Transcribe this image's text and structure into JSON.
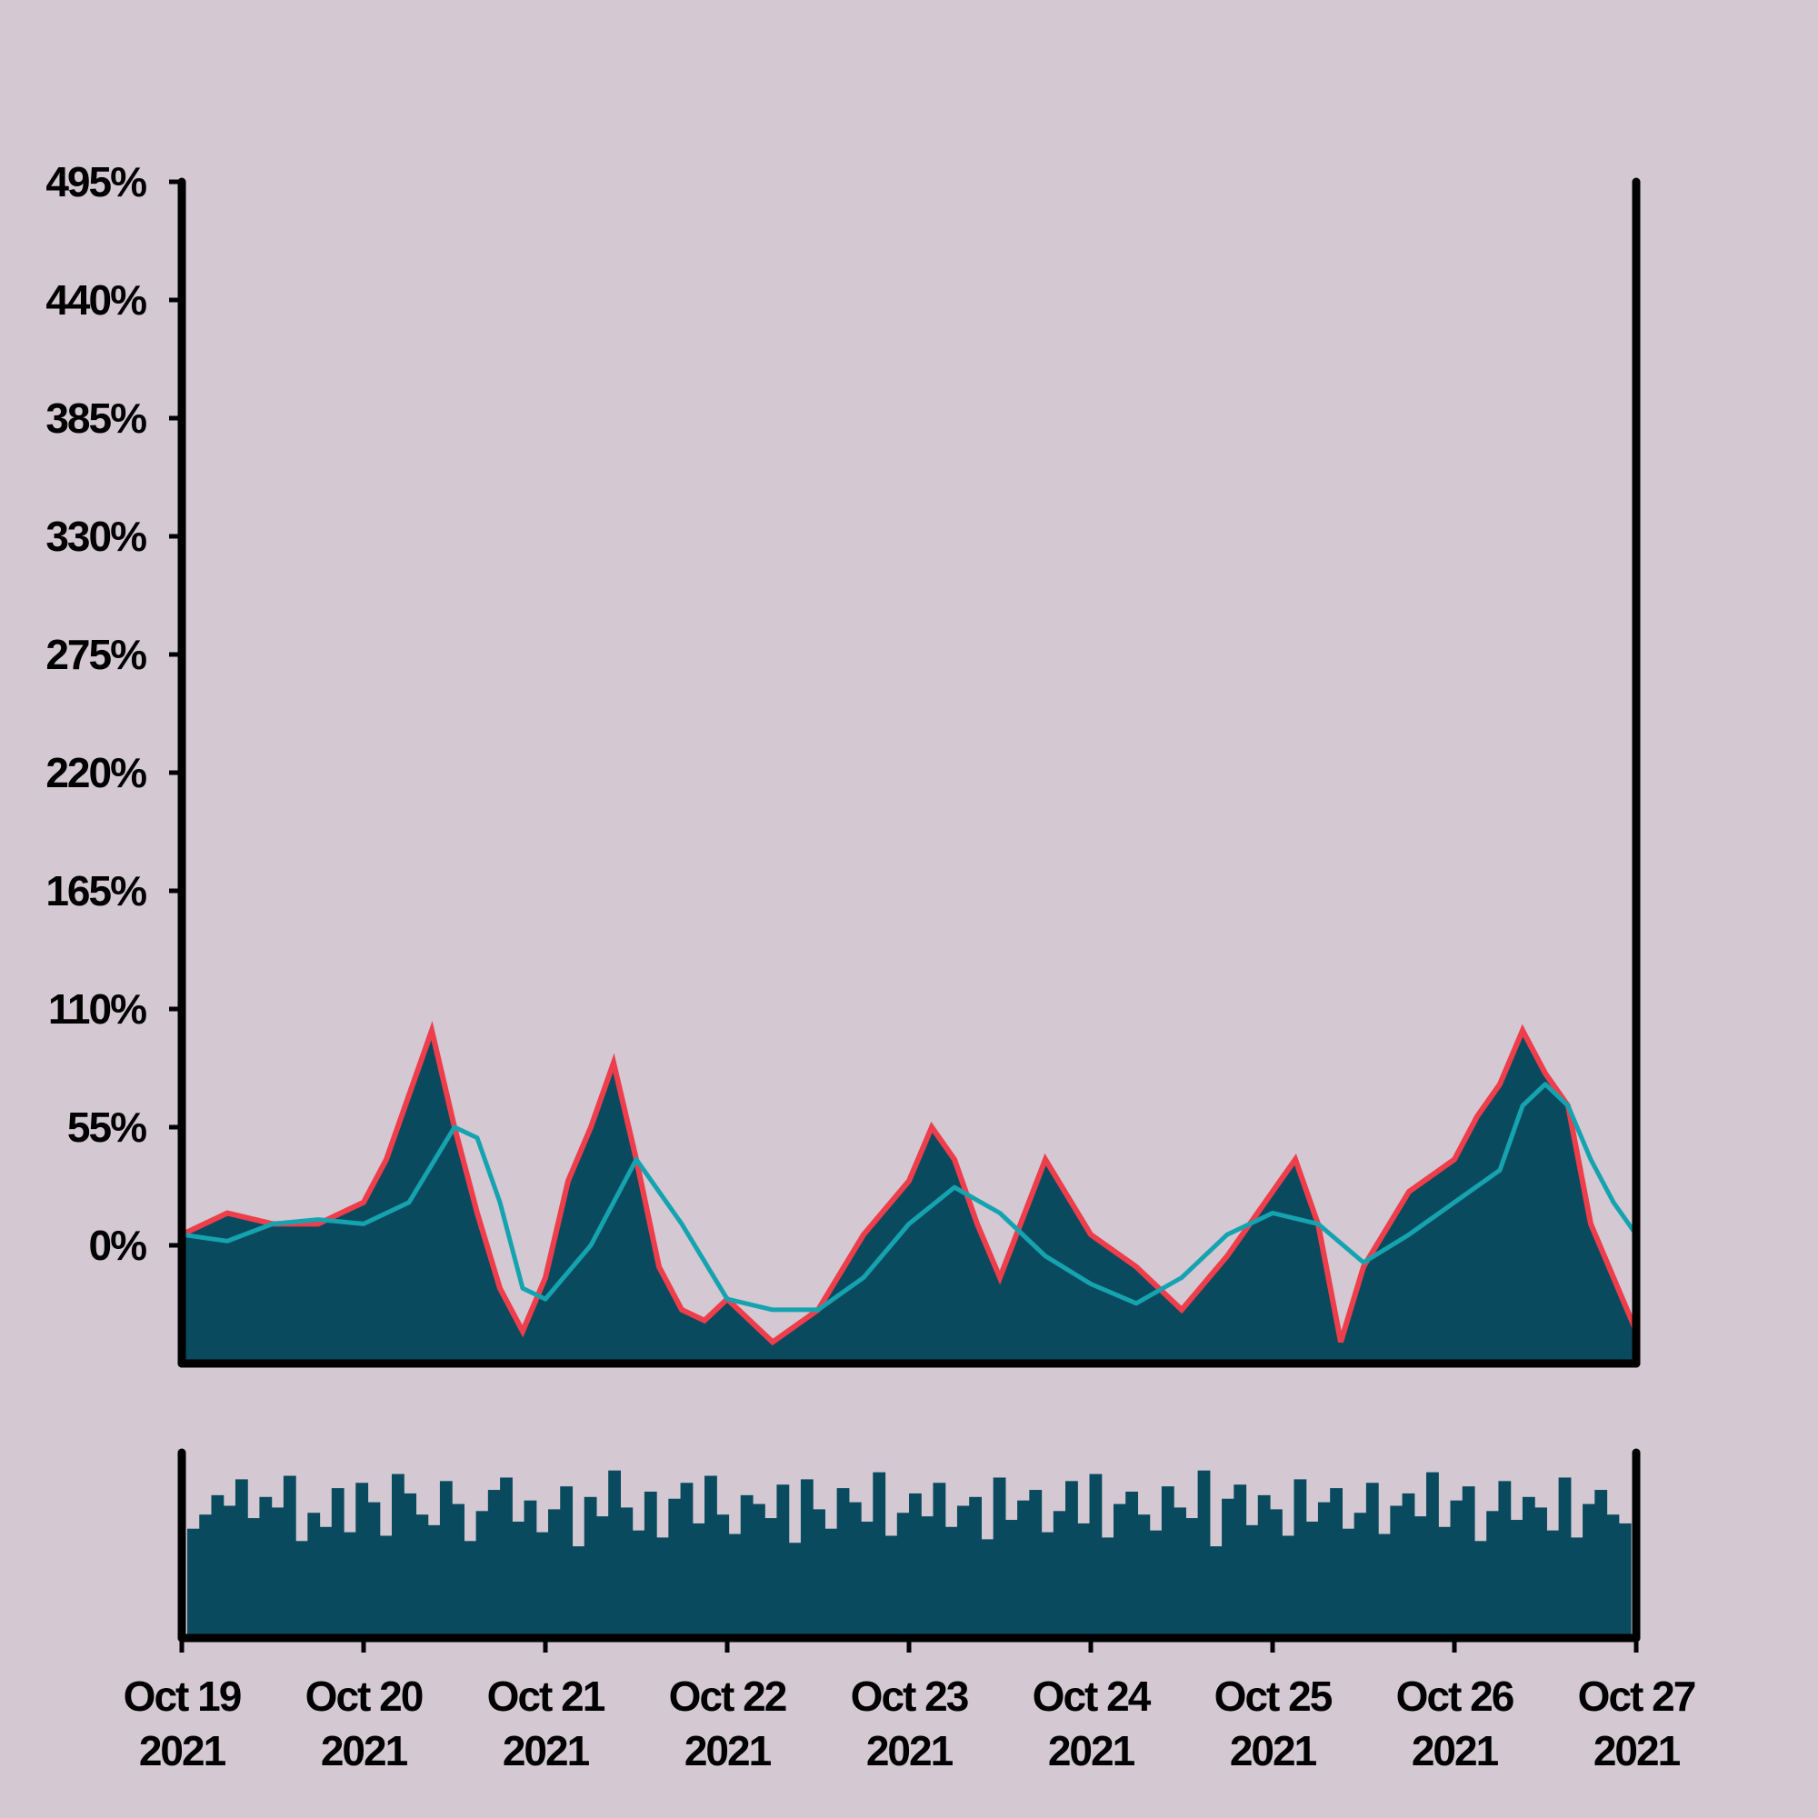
{
  "chart_data": [
    {
      "type": "area",
      "panel": "main",
      "ylabel": "",
      "yticks": [
        "0%",
        "55%",
        "110%",
        "165%",
        "220%",
        "275%",
        "330%",
        "385%",
        "440%",
        "495%"
      ],
      "ylim": [
        -55,
        495
      ],
      "xlim": [
        "2021-10-19",
        "2021-10-27"
      ],
      "grid": false,
      "series": [
        {
          "role": "area",
          "x": [
            "2021-10-19 00:00",
            "2021-10-19 06:00",
            "2021-10-19 12:00",
            "2021-10-19 18:00",
            "2021-10-20 00:00",
            "2021-10-20 03:00",
            "2021-10-20 06:00",
            "2021-10-20 09:00",
            "2021-10-20 12:00",
            "2021-10-20 15:00",
            "2021-10-20 18:00",
            "2021-10-20 21:00",
            "2021-10-21 00:00",
            "2021-10-21 03:00",
            "2021-10-21 06:00",
            "2021-10-21 09:00",
            "2021-10-21 12:00",
            "2021-10-21 15:00",
            "2021-10-21 18:00",
            "2021-10-21 21:00",
            "2021-10-22 00:00",
            "2021-10-22 06:00",
            "2021-10-22 12:00",
            "2021-10-22 18:00",
            "2021-10-23 00:00",
            "2021-10-23 03:00",
            "2021-10-23 06:00",
            "2021-10-23 09:00",
            "2021-10-23 12:00",
            "2021-10-23 18:00",
            "2021-10-24 00:00",
            "2021-10-24 06:00",
            "2021-10-24 12:00",
            "2021-10-24 18:00",
            "2021-10-25 00:00",
            "2021-10-25 03:00",
            "2021-10-25 06:00",
            "2021-10-25 09:00",
            "2021-10-25 12:00",
            "2021-10-25 18:00",
            "2021-10-26 00:00",
            "2021-10-26 03:00",
            "2021-10-26 06:00",
            "2021-10-26 09:00",
            "2021-10-26 12:00",
            "2021-10-26 15:00",
            "2021-10-26 18:00",
            "2021-10-26 21:00",
            "2021-10-27 00:00"
          ],
          "values": [
            5,
            15,
            10,
            10,
            20,
            40,
            70,
            100,
            55,
            15,
            -20,
            -40,
            -15,
            30,
            55,
            85,
            40,
            -10,
            -30,
            -35,
            -25,
            -45,
            -30,
            5,
            30,
            55,
            40,
            10,
            -15,
            40,
            5,
            -10,
            -30,
            -5,
            25,
            40,
            10,
            -45,
            -10,
            25,
            40,
            60,
            75,
            100,
            80,
            65,
            10,
            -15,
            -40
          ]
        },
        {
          "role": "moving average",
          "color": "#16a3b0",
          "x": [
            "2021-10-19 00:00",
            "2021-10-19 06:00",
            "2021-10-19 12:00",
            "2021-10-19 18:00",
            "2021-10-20 00:00",
            "2021-10-20 06:00",
            "2021-10-20 12:00",
            "2021-10-20 15:00",
            "2021-10-20 18:00",
            "2021-10-20 21:00",
            "2021-10-21 00:00",
            "2021-10-21 06:00",
            "2021-10-21 12:00",
            "2021-10-21 18:00",
            "2021-10-22 00:00",
            "2021-10-22 06:00",
            "2021-10-22 12:00",
            "2021-10-22 18:00",
            "2021-10-23 00:00",
            "2021-10-23 06:00",
            "2021-10-23 12:00",
            "2021-10-23 18:00",
            "2021-10-24 00:00",
            "2021-10-24 06:00",
            "2021-10-24 12:00",
            "2021-10-24 18:00",
            "2021-10-25 00:00",
            "2021-10-25 06:00",
            "2021-10-25 12:00",
            "2021-10-25 18:00",
            "2021-10-26 00:00",
            "2021-10-26 06:00",
            "2021-10-26 09:00",
            "2021-10-26 12:00",
            "2021-10-26 15:00",
            "2021-10-26 18:00",
            "2021-10-26 21:00",
            "2021-10-27 00:00"
          ],
          "values": [
            5,
            2,
            10,
            12,
            10,
            20,
            55,
            50,
            20,
            -20,
            -25,
            0,
            40,
            10,
            -25,
            -30,
            -30,
            -15,
            10,
            27,
            15,
            -5,
            -18,
            -27,
            -15,
            5,
            15,
            10,
            -8,
            5,
            20,
            35,
            65,
            75,
            65,
            40,
            20,
            5
          ]
        }
      ]
    },
    {
      "type": "bar",
      "panel": "volume",
      "x_start": "2021-10-19",
      "x_end": "2021-10-27",
      "ylim": [
        0,
        100
      ],
      "values": [
        62,
        70,
        81,
        75,
        90,
        68,
        80,
        74,
        92,
        55,
        71,
        63,
        85,
        60,
        88,
        77,
        58,
        93,
        82,
        70,
        64,
        89,
        76,
        55,
        72,
        84,
        91,
        66,
        78,
        60,
        73,
        86,
        52,
        80,
        69,
        95,
        74,
        61,
        83,
        57,
        79,
        88,
        65,
        92,
        70,
        59,
        81,
        76,
        68,
        87,
        54,
        90,
        73,
        62,
        85,
        77,
        66,
        94,
        58,
        71,
        82,
        69,
        88,
        63,
        75,
        80,
        56,
        91,
        67,
        78,
        84,
        60,
        72,
        89,
        65,
        93,
        57,
        76,
        83,
        70,
        61,
        86,
        74,
        68,
        95,
        52,
        79,
        87,
        64,
        81,
        73,
        58,
        90,
        66,
        77,
        85,
        62,
        71,
        88,
        59,
        75,
        82,
        69,
        94,
        63,
        78,
        86,
        55,
        72,
        89,
        67,
        80,
        74,
        61,
        91,
        57,
        76,
        84,
        70,
        65
      ]
    }
  ],
  "x_tick_labels": [
    {
      "line1": "Oct 19",
      "line2": "2021"
    },
    {
      "line1": "Oct 20",
      "line2": "2021"
    },
    {
      "line1": "Oct 21",
      "line2": "2021"
    },
    {
      "line1": "Oct 22",
      "line2": "2021"
    },
    {
      "line1": "Oct 23",
      "line2": "2021"
    },
    {
      "line1": "Oct 24",
      "line2": "2021"
    },
    {
      "line1": "Oct 25",
      "line2": "2021"
    },
    {
      "line1": "Oct 26",
      "line2": "2021"
    },
    {
      "line1": "Oct 27",
      "line2": "2021"
    }
  ],
  "colors": {
    "background": "#d4c9d3",
    "area_fill": "#0a4a5e",
    "area_edge": "#ee3e4c",
    "moving_average": "#16a3b0",
    "volume_bars": "#0a4a5e",
    "axes": "#000000"
  }
}
